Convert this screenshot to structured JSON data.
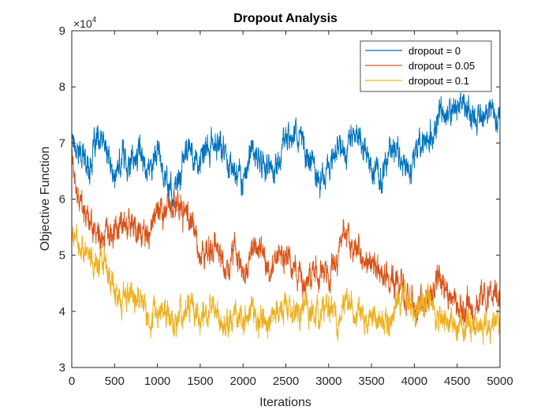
{
  "chart_data": {
    "type": "line",
    "title": "Dropout Analysis",
    "xlabel": "Iterations",
    "ylabel": "Objective Function",
    "y_multiplier": {
      "base": "×10",
      "exponent": "4"
    },
    "xlim": [
      0,
      5000
    ],
    "ylim": [
      3,
      9
    ],
    "xticks": [
      0,
      500,
      1000,
      1500,
      2000,
      2500,
      3000,
      3500,
      4000,
      4500,
      5000
    ],
    "yticks": [
      3,
      4,
      5,
      6,
      7,
      8,
      9
    ],
    "grid": false,
    "legend_position": "top-right",
    "series": [
      {
        "name": "dropout = 0",
        "color": "#0072BD",
        "x": [
          0,
          100,
          200,
          300,
          400,
          500,
          600,
          700,
          800,
          900,
          1000,
          1100,
          1200,
          1300,
          1400,
          1500,
          1600,
          1700,
          1800,
          1900,
          2000,
          2100,
          2200,
          2300,
          2400,
          2500,
          2600,
          2700,
          2800,
          2900,
          3000,
          3100,
          3200,
          3300,
          3400,
          3500,
          3600,
          3700,
          3800,
          3900,
          4000,
          4100,
          4200,
          4300,
          4400,
          4500,
          4600,
          4700,
          4800,
          4900,
          5000
        ],
        "values": [
          7.2,
          6.8,
          6.6,
          7.0,
          6.9,
          6.3,
          6.8,
          6.6,
          6.9,
          6.5,
          6.9,
          6.4,
          6.0,
          6.7,
          6.9,
          6.6,
          6.9,
          7.0,
          6.8,
          6.5,
          6.4,
          6.8,
          6.7,
          6.5,
          6.6,
          7.1,
          7.3,
          6.9,
          6.7,
          6.4,
          6.5,
          7.0,
          6.9,
          7.2,
          7.0,
          6.6,
          6.3,
          6.8,
          6.9,
          6.6,
          6.8,
          7.0,
          7.1,
          7.4,
          7.5,
          7.7,
          7.8,
          7.4,
          7.6,
          7.6,
          7.4
        ]
      },
      {
        "name": "dropout = 0.05",
        "color": "#D95319",
        "x": [
          0,
          100,
          200,
          300,
          400,
          500,
          600,
          700,
          800,
          900,
          1000,
          1100,
          1200,
          1300,
          1400,
          1500,
          1600,
          1700,
          1800,
          1900,
          2000,
          2100,
          2200,
          2300,
          2400,
          2500,
          2600,
          2700,
          2800,
          2900,
          3000,
          3100,
          3200,
          3300,
          3400,
          3500,
          3600,
          3700,
          3800,
          3900,
          4000,
          4100,
          4200,
          4300,
          4400,
          4500,
          4600,
          4700,
          4800,
          4900,
          5000
        ],
        "values": [
          6.8,
          5.8,
          5.5,
          5.4,
          5.3,
          5.2,
          5.6,
          5.6,
          5.3,
          5.4,
          5.6,
          5.8,
          5.9,
          5.8,
          5.6,
          4.9,
          5.0,
          5.1,
          4.9,
          5.0,
          4.7,
          5.2,
          5.1,
          4.8,
          4.9,
          5.0,
          4.6,
          4.5,
          4.6,
          4.8,
          4.6,
          5.0,
          5.3,
          5.2,
          5.0,
          4.9,
          4.8,
          4.6,
          4.5,
          4.3,
          4.2,
          4.1,
          4.4,
          4.5,
          4.3,
          4.1,
          4.0,
          3.95,
          4.3,
          4.4,
          4.3
        ]
      },
      {
        "name": "dropout = 0.1",
        "color": "#EDB120",
        "x": [
          0,
          100,
          200,
          300,
          400,
          500,
          600,
          700,
          800,
          900,
          1000,
          1100,
          1200,
          1300,
          1400,
          1500,
          1600,
          1700,
          1800,
          1900,
          2000,
          2100,
          2200,
          2300,
          2400,
          2500,
          2600,
          2700,
          2800,
          2900,
          3000,
          3100,
          3200,
          3300,
          3400,
          3500,
          3600,
          3700,
          3800,
          3900,
          4000,
          4100,
          4200,
          4300,
          4400,
          4500,
          4600,
          4700,
          4800,
          4900,
          5000
        ],
        "values": [
          5.5,
          5.1,
          4.9,
          4.8,
          4.9,
          4.3,
          4.2,
          4.4,
          4.3,
          4.0,
          4.0,
          3.9,
          3.8,
          4.0,
          4.2,
          3.8,
          4.0,
          3.9,
          3.7,
          4.0,
          3.9,
          4.0,
          3.8,
          3.8,
          4.0,
          4.1,
          3.9,
          4.0,
          4.0,
          3.9,
          4.1,
          3.9,
          4.2,
          4.0,
          3.8,
          3.9,
          3.8,
          3.9,
          4.0,
          4.1,
          4.0,
          4.1,
          4.0,
          3.9,
          3.85,
          3.8,
          3.75,
          3.75,
          3.75,
          3.72,
          3.72
        ]
      }
    ]
  }
}
